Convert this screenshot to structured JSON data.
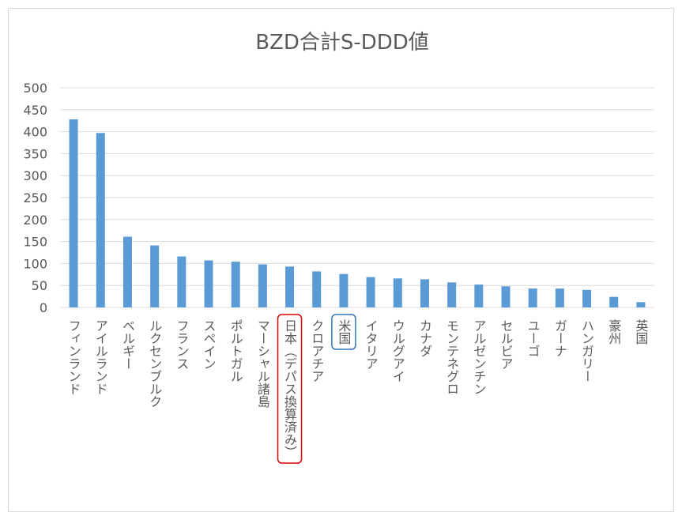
{
  "chart_data": {
    "type": "bar",
    "title": "BZD合計S-DDD値",
    "xlabel": "",
    "ylabel": "",
    "ylim": [
      0,
      500
    ],
    "yticks": [
      0,
      50,
      100,
      150,
      200,
      250,
      300,
      350,
      400,
      450,
      500
    ],
    "grid": true,
    "legend": "none",
    "bar_color": "#5b9bd5",
    "categories": [
      "フィンランド",
      "アイルランド",
      "ベルギー",
      "ルクセンブルク",
      "フランス",
      "スペイン",
      "ポルトガル",
      "マーシャル諸島",
      "日本（デパス換算済み）",
      "クロアチア",
      "米国",
      "イタリア",
      "ウルグアイ",
      "カナダ",
      "モンテネグロ",
      "アルゼンチン",
      "セルビア",
      "ユーゴ",
      "ガーナ",
      "ハンガリー",
      "豪州",
      "英国"
    ],
    "values": [
      428,
      397,
      161,
      141,
      116,
      107,
      104,
      98,
      93,
      82,
      76,
      69,
      66,
      64,
      57,
      52,
      48,
      43,
      43,
      40,
      24,
      12
    ],
    "highlights": [
      {
        "category": "日本（デパス換算済み）",
        "color": "#e00000"
      },
      {
        "category": "米国",
        "color": "#2e75b6"
      }
    ]
  }
}
